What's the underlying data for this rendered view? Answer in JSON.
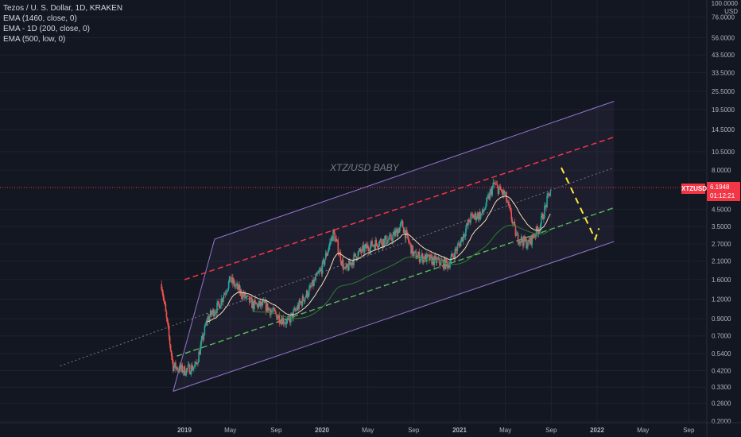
{
  "legend": {
    "title": "Tezos / U. S. Dollar, 1D, KRAKEN",
    "lines": [
      "EMA (1460, close, 0)",
      "EMA - 1D (200, close, 0)",
      "EMA (500, low, 0)"
    ]
  },
  "price_axis": {
    "unit_top": "100.0000",
    "unit": "USD"
  },
  "last_price": {
    "symbol": "XTZUSD",
    "value": "6.1948",
    "countdown": "01:12:21"
  },
  "annotation_text": "XTZ/USD BABY",
  "colors": {
    "background": "#131722",
    "up_candle": "#26a69a",
    "down_candle": "#ef5350",
    "channel": "#9575cd",
    "resistance": "#f23645",
    "support": "#4caf50",
    "ema1460": "#f5deb3",
    "ema200": "#2e7d32",
    "projection": "#ffeb3b"
  },
  "chart_data": {
    "type": "candlestick",
    "scale": "log",
    "y_ticks": [
      "76.0000",
      "56.0000",
      "43.5000",
      "33.5000",
      "25.5000",
      "19.5000",
      "14.5000",
      "10.5000",
      "8.0000",
      "6.1948",
      "4.5000",
      "3.5000",
      "2.7000",
      "2.1000",
      "1.6000",
      "1.2000",
      "0.9000",
      "0.7000",
      "0.5400",
      "0.4200",
      "0.3300",
      "0.2600",
      "0.2000"
    ],
    "x_ticks": [
      "2019",
      "May",
      "Sep",
      "2020",
      "May",
      "Sep",
      "2021",
      "May",
      "Sep",
      "2022",
      "May",
      "Sep"
    ],
    "ylim": [
      0.2,
      100
    ],
    "series": [
      {
        "name": "XTZUSD",
        "approx_closes": [
          {
            "t": "2018-11",
            "v": 1.5
          },
          {
            "t": "2018-12",
            "v": 0.45
          },
          {
            "t": "2019-01",
            "v": 0.42
          },
          {
            "t": "2019-02",
            "v": 0.45
          },
          {
            "t": "2019-03",
            "v": 0.9
          },
          {
            "t": "2019-04",
            "v": 1.1
          },
          {
            "t": "2019-05",
            "v": 1.6
          },
          {
            "t": "2019-06",
            "v": 1.3
          },
          {
            "t": "2019-07",
            "v": 1.1
          },
          {
            "t": "2019-08",
            "v": 1.1
          },
          {
            "t": "2019-09",
            "v": 0.95
          },
          {
            "t": "2019-10",
            "v": 0.85
          },
          {
            "t": "2019-11",
            "v": 1.1
          },
          {
            "t": "2019-12",
            "v": 1.4
          },
          {
            "t": "2020-01",
            "v": 1.9
          },
          {
            "t": "2020-02",
            "v": 3.2
          },
          {
            "t": "2020-03",
            "v": 1.8
          },
          {
            "t": "2020-04",
            "v": 2.3
          },
          {
            "t": "2020-05",
            "v": 2.6
          },
          {
            "t": "2020-06",
            "v": 2.8
          },
          {
            "t": "2020-07",
            "v": 2.9
          },
          {
            "t": "2020-08",
            "v": 3.6
          },
          {
            "t": "2020-09",
            "v": 2.3
          },
          {
            "t": "2020-10",
            "v": 2.2
          },
          {
            "t": "2020-11",
            "v": 2.1
          },
          {
            "t": "2020-12",
            "v": 2.0
          },
          {
            "t": "2021-01",
            "v": 2.7
          },
          {
            "t": "2021-02",
            "v": 4.0
          },
          {
            "t": "2021-03",
            "v": 4.2
          },
          {
            "t": "2021-04",
            "v": 6.5
          },
          {
            "t": "2021-05",
            "v": 5.5
          },
          {
            "t": "2021-06",
            "v": 3.0
          },
          {
            "t": "2021-07",
            "v": 2.7
          },
          {
            "t": "2021-08",
            "v": 3.5
          },
          {
            "t": "2021-09",
            "v": 6.19
          }
        ]
      }
    ]
  }
}
